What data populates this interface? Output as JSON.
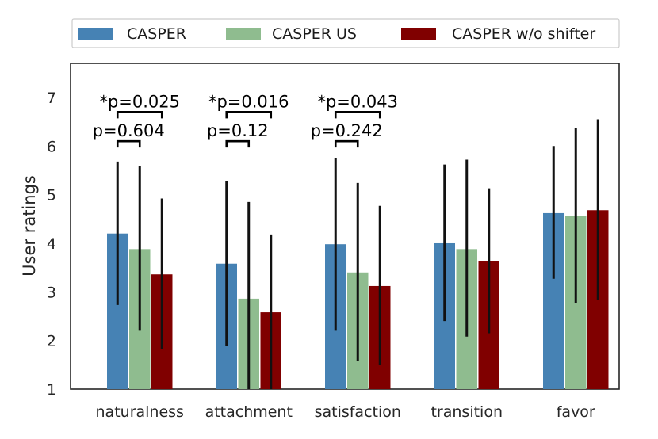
{
  "chart_data": {
    "type": "bar",
    "title": "",
    "xlabel": "",
    "ylabel": "User ratings",
    "ylim": [
      1,
      7.7
    ],
    "yticks": [
      "1",
      "2",
      "3",
      "4",
      "5",
      "6",
      "7"
    ],
    "grid": false,
    "legend_position": "top-center, outside plot",
    "categories": [
      "naturalness",
      "attachment",
      "satisfaction",
      "transition",
      "favor"
    ],
    "series": [
      {
        "name": "CASPER",
        "color": "#4682b4",
        "values": [
          4.2,
          3.58,
          3.98,
          4.0,
          4.62
        ],
        "error_low": [
          2.73,
          1.88,
          2.2,
          2.4,
          3.27
        ],
        "error_high": [
          5.68,
          5.28,
          5.76,
          5.62,
          6.0
        ]
      },
      {
        "name": "CASPER US",
        "color": "#8fbc8f",
        "values": [
          3.88,
          2.86,
          3.4,
          3.88,
          4.56
        ],
        "error_low": [
          2.2,
          1.0,
          1.57,
          2.08,
          2.77
        ],
        "error_high": [
          5.58,
          4.85,
          5.24,
          5.72,
          6.38
        ]
      },
      {
        "name": "CASPER w/o shifter",
        "color": "#800000",
        "values": [
          3.36,
          2.58,
          3.12,
          3.63,
          4.68
        ],
        "error_low": [
          1.82,
          1.0,
          1.5,
          2.15,
          2.83
        ],
        "error_high": [
          4.92,
          4.18,
          4.77,
          5.13,
          6.55
        ]
      }
    ],
    "annotations": [
      {
        "category": "naturalness",
        "pair": "CASPER vs CASPER US",
        "text": "p=0.604",
        "level": 6.1
      },
      {
        "category": "naturalness",
        "pair": "CASPER vs CASPER w/o shifter",
        "text": "*p=0.025",
        "level": 6.7
      },
      {
        "category": "attachment",
        "pair": "CASPER vs CASPER US",
        "text": "p=0.12",
        "level": 6.1
      },
      {
        "category": "attachment",
        "pair": "CASPER vs CASPER w/o shifter",
        "text": "*p=0.016",
        "level": 6.7
      },
      {
        "category": "satisfaction",
        "pair": "CASPER vs CASPER US",
        "text": "p=0.242",
        "level": 6.1
      },
      {
        "category": "satisfaction",
        "pair": "CASPER vs CASPER w/o shifter",
        "text": "*p=0.043",
        "level": 6.7
      }
    ]
  }
}
